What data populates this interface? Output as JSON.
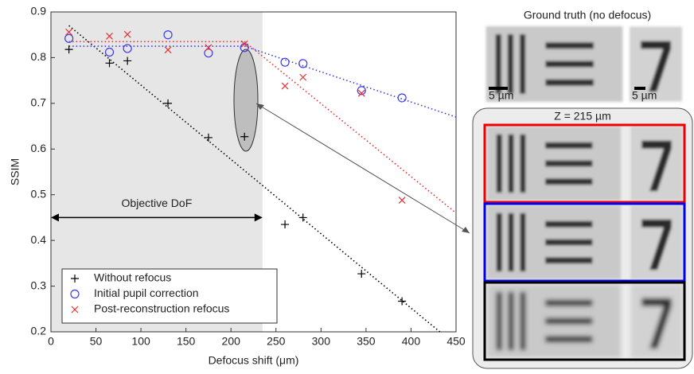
{
  "chart_data": {
    "type": "scatter",
    "x_label": "Defocus shift (μm)",
    "y_label": "SSIM",
    "xlim": [
      0,
      450
    ],
    "ylim": [
      0.2,
      0.9
    ],
    "xticks": [
      0,
      50,
      100,
      150,
      200,
      250,
      300,
      350,
      400,
      450
    ],
    "yticks": [
      0.2,
      0.3,
      0.4,
      0.5,
      0.6,
      0.7,
      0.8,
      0.9
    ],
    "grid": false,
    "legend": "lower left",
    "shaded_region": [
      0,
      235
    ],
    "annotation": {
      "text": "Objective DoF",
      "x": [
        0,
        235
      ],
      "y": 0.45
    },
    "series": [
      {
        "name": "Without refocus",
        "color": "#000000",
        "marker": "+",
        "x": [
          20,
          65,
          85,
          130,
          175,
          215,
          260,
          280,
          345,
          390
        ],
        "values": [
          0.818,
          0.788,
          0.793,
          0.7,
          0.625,
          0.627,
          0.435,
          0.45,
          0.327,
          0.267
        ],
        "fit_x": [
          20,
          432
        ],
        "fit_y": [
          0.87,
          0.2
        ]
      },
      {
        "name": "Initial pupil correction",
        "color": "#3a3aee",
        "marker": "o",
        "x": [
          20,
          65,
          85,
          130,
          175,
          215,
          260,
          280,
          345,
          390
        ],
        "values": [
          0.842,
          0.812,
          0.82,
          0.85,
          0.81,
          0.822,
          0.79,
          0.787,
          0.728,
          0.712
        ],
        "fit_x": [
          20,
          215,
          450
        ],
        "fit_y": [
          0.825,
          0.825,
          0.67
        ]
      },
      {
        "name": "Post-reconstruction refocus",
        "color": "#e83030",
        "marker": "x",
        "x": [
          20,
          65,
          85,
          130,
          175,
          215,
          260,
          280,
          345,
          390
        ],
        "values": [
          0.856,
          0.847,
          0.851,
          0.817,
          0.822,
          0.83,
          0.738,
          0.757,
          0.722,
          0.488
        ],
        "fit_x": [
          20,
          215,
          450
        ],
        "fit_y": [
          0.835,
          0.835,
          0.46
        ]
      }
    ]
  },
  "figure_panel": {
    "title": "Ground truth (no defocus)",
    "scale_labels": [
      "5 µm",
      "5 µm"
    ],
    "panel_title": "Z = 215 µm"
  }
}
